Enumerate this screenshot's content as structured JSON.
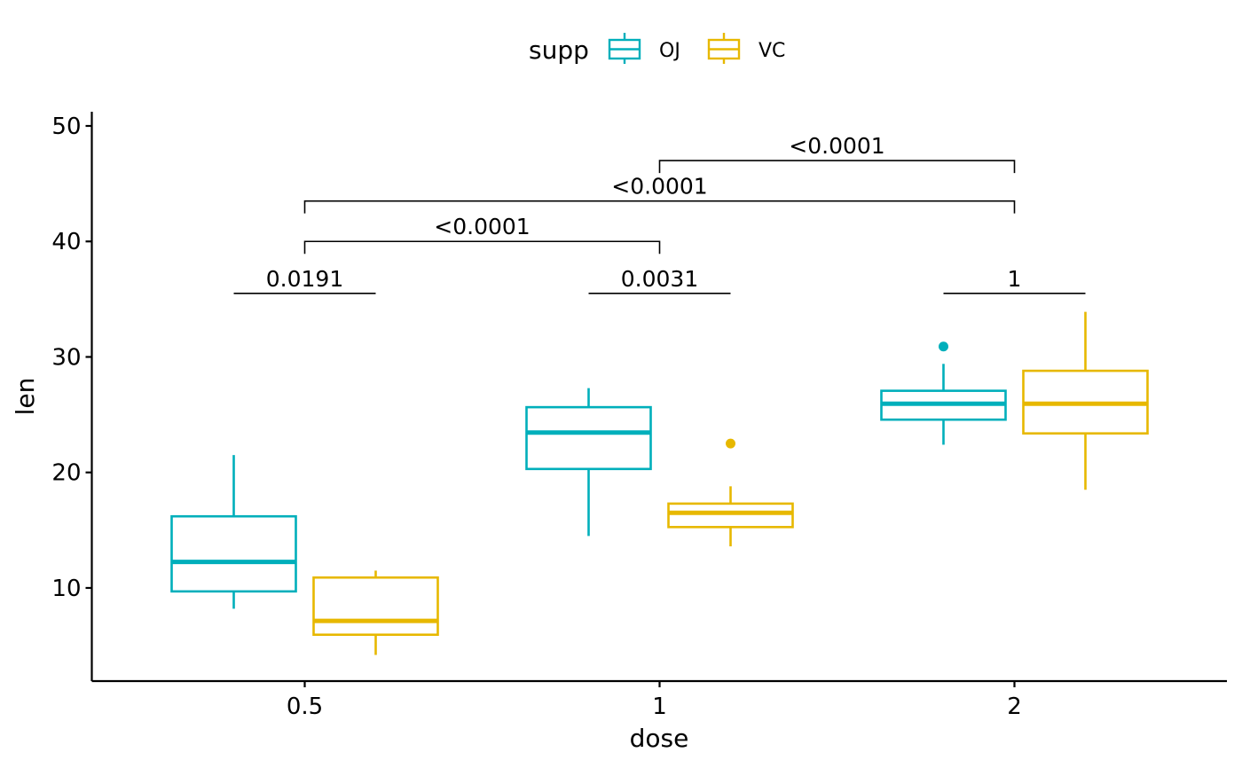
{
  "chart_data": {
    "type": "box",
    "xlabel": "dose",
    "ylabel": "len",
    "categories": [
      "0.5",
      "1",
      "2"
    ],
    "ylim": [
      2,
      51
    ],
    "yticks": [
      10,
      20,
      30,
      40,
      50
    ],
    "grid": false,
    "legend": {
      "title": "supp",
      "position": "top"
    },
    "series": [
      {
        "name": "OJ",
        "color": "#00AFBB",
        "boxes": [
          {
            "category": "0.5",
            "whisker_low": 8.2,
            "q1": 9.7,
            "median": 12.25,
            "q3": 16.2,
            "whisker_high": 21.5,
            "outliers": []
          },
          {
            "category": "1",
            "whisker_low": 14.5,
            "q1": 20.3,
            "median": 23.45,
            "q3": 25.65,
            "whisker_high": 27.3,
            "outliers": []
          },
          {
            "category": "2",
            "whisker_low": 22.4,
            "q1": 24.57,
            "median": 25.95,
            "q3": 27.07,
            "whisker_high": 29.4,
            "outliers": [
              30.9
            ]
          }
        ]
      },
      {
        "name": "VC",
        "color": "#E7B800",
        "boxes": [
          {
            "category": "0.5",
            "whisker_low": 4.2,
            "q1": 5.95,
            "median": 7.15,
            "q3": 10.9,
            "whisker_high": 11.5,
            "outliers": []
          },
          {
            "category": "1",
            "whisker_low": 13.6,
            "q1": 15.27,
            "median": 16.5,
            "q3": 17.3,
            "whisker_high": 18.8,
            "outliers": [
              22.5
            ]
          },
          {
            "category": "2",
            "whisker_low": 18.5,
            "q1": 23.38,
            "median": 25.95,
            "q3": 28.8,
            "whisker_high": 33.9,
            "outliers": []
          }
        ]
      }
    ],
    "comparisons": [
      {
        "type": "within",
        "category": "0.5",
        "label": "0.0191",
        "y": 35.5
      },
      {
        "type": "within",
        "category": "1",
        "label": "0.0031",
        "y": 35.5
      },
      {
        "type": "within",
        "category": "2",
        "label": "1",
        "y": 35.5
      },
      {
        "type": "between",
        "from": "0.5",
        "to": "1",
        "label": "<0.0001",
        "y": 40.0
      },
      {
        "type": "between",
        "from": "0.5",
        "to": "2",
        "label": "<0.0001",
        "y": 43.5
      },
      {
        "type": "between",
        "from": "1",
        "to": "2",
        "label": "<0.0001",
        "y": 47.0
      }
    ]
  }
}
